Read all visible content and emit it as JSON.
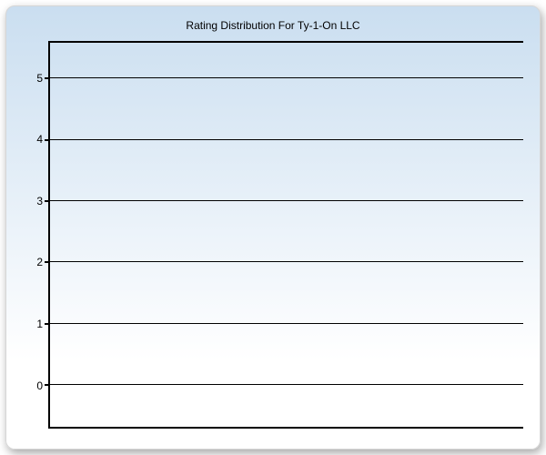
{
  "chart": {
    "type": "bar",
    "title": "Rating Distribution For Ty-1-On LLC",
    "title_fontsize": 12,
    "title_color": "#000000",
    "categories": [],
    "values": [],
    "ylim": [
      -0.7,
      5.6
    ],
    "yticks": [
      0,
      1,
      2,
      3,
      4,
      5
    ],
    "ytick_fontsize": 12,
    "grid_color": "#000000",
    "axis_color": "#000000",
    "background_gradient_top": "#cadef0",
    "background_gradient_bottom": "#ffffff",
    "card_border_color": "#d6d6d6",
    "card_border_radius": 10,
    "shadow_color": "rgba(0,0,0,0.35)"
  }
}
